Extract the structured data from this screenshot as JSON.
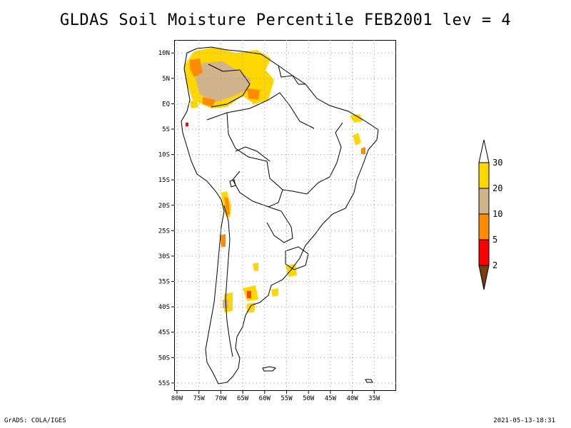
{
  "title": "GLDAS Soil Moisture Percentile FEB2001 lev = 4",
  "footer": {
    "credit": "GrADS: COLA/IGES",
    "timestamp": "2021-05-13-18:31"
  },
  "map": {
    "lon_range": [
      -80,
      -30
    ],
    "lat_range": [
      -56,
      12
    ],
    "lat_ticks": [
      {
        "value": 10,
        "label": "10N"
      },
      {
        "value": 5,
        "label": "5N"
      },
      {
        "value": 0,
        "label": "EQ"
      },
      {
        "value": -5,
        "label": "5S"
      },
      {
        "value": -10,
        "label": "10S"
      },
      {
        "value": -15,
        "label": "15S"
      },
      {
        "value": -20,
        "label": "20S"
      },
      {
        "value": -25,
        "label": "25S"
      },
      {
        "value": -30,
        "label": "30S"
      },
      {
        "value": -35,
        "label": "35S"
      },
      {
        "value": -40,
        "label": "40S"
      },
      {
        "value": -45,
        "label": "45S"
      },
      {
        "value": -50,
        "label": "50S"
      },
      {
        "value": -55,
        "label": "55S"
      }
    ],
    "lon_ticks": [
      {
        "value": -80,
        "label": "80W"
      },
      {
        "value": -75,
        "label": "75W"
      },
      {
        "value": -70,
        "label": "70W"
      },
      {
        "value": -65,
        "label": "65W"
      },
      {
        "value": -60,
        "label": "60W"
      },
      {
        "value": -55,
        "label": "55W"
      },
      {
        "value": -50,
        "label": "50W"
      },
      {
        "value": -45,
        "label": "45W"
      },
      {
        "value": -40,
        "label": "40W"
      },
      {
        "value": -35,
        "label": "35W"
      }
    ]
  },
  "legend": {
    "bins": [
      {
        "upper": "2",
        "color": "#7a3e0e"
      },
      {
        "upper": "5",
        "color": "#ff0000"
      },
      {
        "upper": "10",
        "color": "#ff8c00"
      },
      {
        "upper": "20",
        "color": "#d2b48c"
      },
      {
        "upper": "30",
        "color": "#ffd700"
      },
      {
        "upper": "",
        "color": "#ffffff"
      }
    ],
    "labels": [
      "30",
      "20",
      "10",
      "5",
      "2"
    ]
  },
  "colors": {
    "yellow": "#ffd700",
    "tan": "#d2b48c",
    "orange": "#ff8c00",
    "red": "#ff0000",
    "brown": "#7a3e0e"
  }
}
